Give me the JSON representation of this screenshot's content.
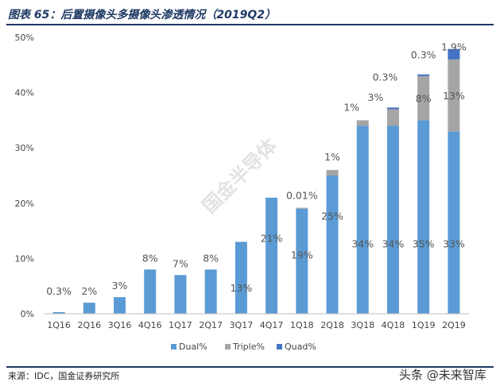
{
  "header": {
    "title": "图表 65：后置摄像头多摄像头渗透情况（2019Q2）"
  },
  "footer": {
    "source": "来源：IDC，国金证券研究所",
    "brand": "头条 @未来智库"
  },
  "watermark": {
    "text": "国金半导体"
  },
  "chart_data": {
    "type": "bar",
    "stacked": true,
    "title": "",
    "xlabel": "",
    "ylabel": "",
    "ylim": [
      0,
      50
    ],
    "y_ticks": [
      "0%",
      "10%",
      "20%",
      "30%",
      "40%",
      "50%"
    ],
    "grid": false,
    "legend_position": "bottom",
    "categories": [
      "1Q16",
      "2Q16",
      "3Q16",
      "4Q16",
      "1Q17",
      "2Q17",
      "3Q17",
      "4Q17",
      "1Q18",
      "2Q18",
      "3Q18",
      "4Q18",
      "1Q19",
      "2Q19"
    ],
    "series": [
      {
        "name": "Dual%",
        "color": "#5b9bd5",
        "values": [
          0.3,
          2,
          3,
          8,
          7,
          8,
          13,
          21,
          19,
          25,
          34,
          34,
          35,
          33
        ],
        "labels": [
          "0.3%",
          "2%",
          "3%",
          "8%",
          "7%",
          "8%",
          "13%",
          "21%",
          "19%",
          "25%",
          "34%",
          "34%",
          "35%",
          "33%"
        ]
      },
      {
        "name": "Triple%",
        "color": "#a5a5a5",
        "values": [
          0,
          0,
          0,
          0,
          0,
          0,
          0,
          0,
          0.01,
          1,
          1,
          3,
          8,
          13
        ],
        "labels": [
          "",
          "",
          "",
          "",
          "",
          "",
          "",
          "",
          "0.01%",
          "1%",
          "1%",
          "3%",
          "8%",
          "13%"
        ]
      },
      {
        "name": "Quad%",
        "color": "#4472c4",
        "values": [
          0,
          0,
          0,
          0,
          0,
          0,
          0,
          0,
          0,
          0,
          0,
          0.3,
          0.3,
          1.9
        ],
        "labels": [
          "",
          "",
          "",
          "",
          "",
          "",
          "",
          "",
          "",
          "",
          "",
          "0.3%",
          "0.3%",
          "1.9%"
        ]
      }
    ]
  }
}
